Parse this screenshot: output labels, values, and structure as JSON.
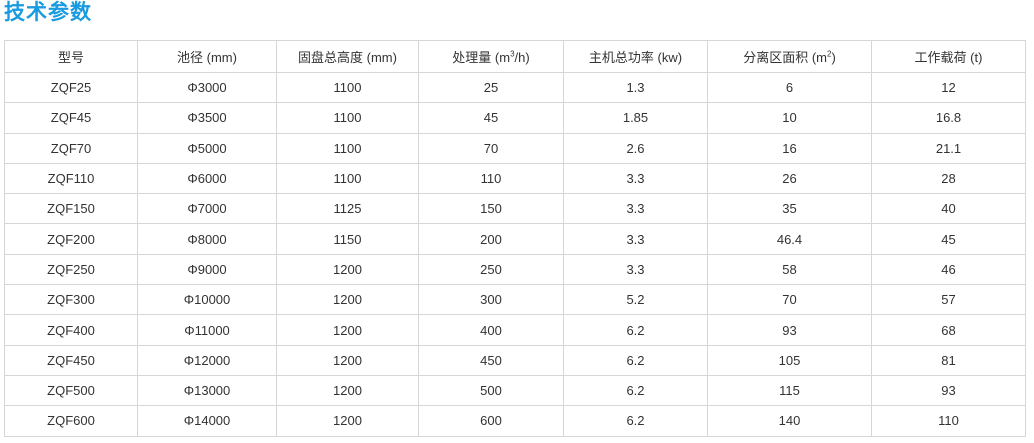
{
  "title": "技术参数",
  "headers": [
    {
      "text": "型号"
    },
    {
      "text": "池径 (mm)"
    },
    {
      "text": "固盘总高度 (mm)"
    },
    {
      "text": "处理量 (m",
      "sup": "3",
      "after": "/h)"
    },
    {
      "text": "主机总功率 (kw)"
    },
    {
      "text": "分离区面积 (m",
      "sup": "2",
      "after": ")"
    },
    {
      "text": "工作载荷 (t)"
    }
  ],
  "rows": [
    [
      "ZQF25",
      "Φ3000",
      "1100",
      "25",
      "1.3",
      "6",
      "12"
    ],
    [
      "ZQF45",
      "Φ3500",
      "1100",
      "45",
      "1.85",
      "10",
      "16.8"
    ],
    [
      "ZQF70",
      "Φ5000",
      "1100",
      "70",
      "2.6",
      "16",
      "21.1"
    ],
    [
      "ZQF110",
      "Φ6000",
      "1100",
      "110",
      "3.3",
      "26",
      "28"
    ],
    [
      "ZQF150",
      "Φ7000",
      "1125",
      "150",
      "3.3",
      "35",
      "40"
    ],
    [
      "ZQF200",
      "Φ8000",
      "1150",
      "200",
      "3.3",
      "46.4",
      "45"
    ],
    [
      "ZQF250",
      "Φ9000",
      "1200",
      "250",
      "3.3",
      "58",
      "46"
    ],
    [
      "ZQF300",
      "Φ10000",
      "1200",
      "300",
      "5.2",
      "70",
      "57"
    ],
    [
      "ZQF400",
      "Φ11000",
      "1200",
      "400",
      "6.2",
      "93",
      "68"
    ],
    [
      "ZQF450",
      "Φ12000",
      "1200",
      "450",
      "6.2",
      "105",
      "81"
    ],
    [
      "ZQF500",
      "Φ13000",
      "1200",
      "500",
      "6.2",
      "115",
      "93"
    ],
    [
      "ZQF600",
      "Φ14000",
      "1200",
      "600",
      "6.2",
      "140",
      "110"
    ]
  ],
  "colors": {
    "title": "#1a9be0",
    "border": "#d6d6d6",
    "text": "#333333"
  }
}
